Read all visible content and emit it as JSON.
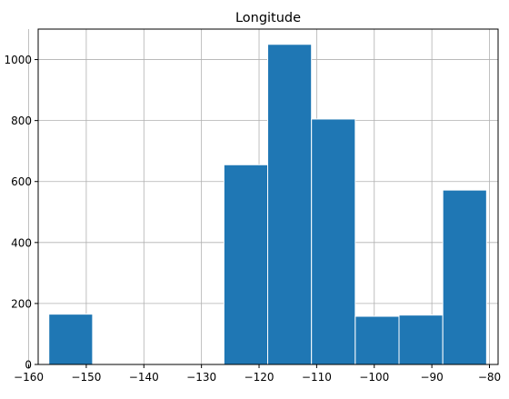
{
  "chart_data": {
    "type": "bar",
    "title": "Longitude",
    "xlabel": "",
    "ylabel": "",
    "bin_edges": [
      -156.5,
      -148.9,
      -141.3,
      -133.7,
      -126.1,
      -118.5,
      -110.9,
      -103.3,
      -95.7,
      -88.1,
      -80.5
    ],
    "counts": [
      165,
      0,
      0,
      0,
      655,
      1050,
      805,
      158,
      162,
      572
    ],
    "xlim": [
      -158.35,
      -78.5
    ],
    "ylim": [
      0,
      1100
    ],
    "x_ticks": [
      -160,
      -150,
      -140,
      -130,
      -120,
      -110,
      -100,
      -90,
      -80
    ],
    "x_tick_labels": [
      "−160",
      "−150",
      "−140",
      "−130",
      "−120",
      "−110",
      "−100",
      "−90",
      "−80"
    ],
    "y_ticks": [
      0,
      200,
      400,
      600,
      800,
      1000
    ],
    "y_tick_labels": [
      "0",
      "200",
      "400",
      "600",
      "800",
      "1000"
    ],
    "grid": true,
    "legend": "none",
    "colors": {
      "bar_fill": "#1f77b4",
      "bar_edge": "#ffffff",
      "grid": "#b0b0b0",
      "axis": "#000000"
    }
  }
}
